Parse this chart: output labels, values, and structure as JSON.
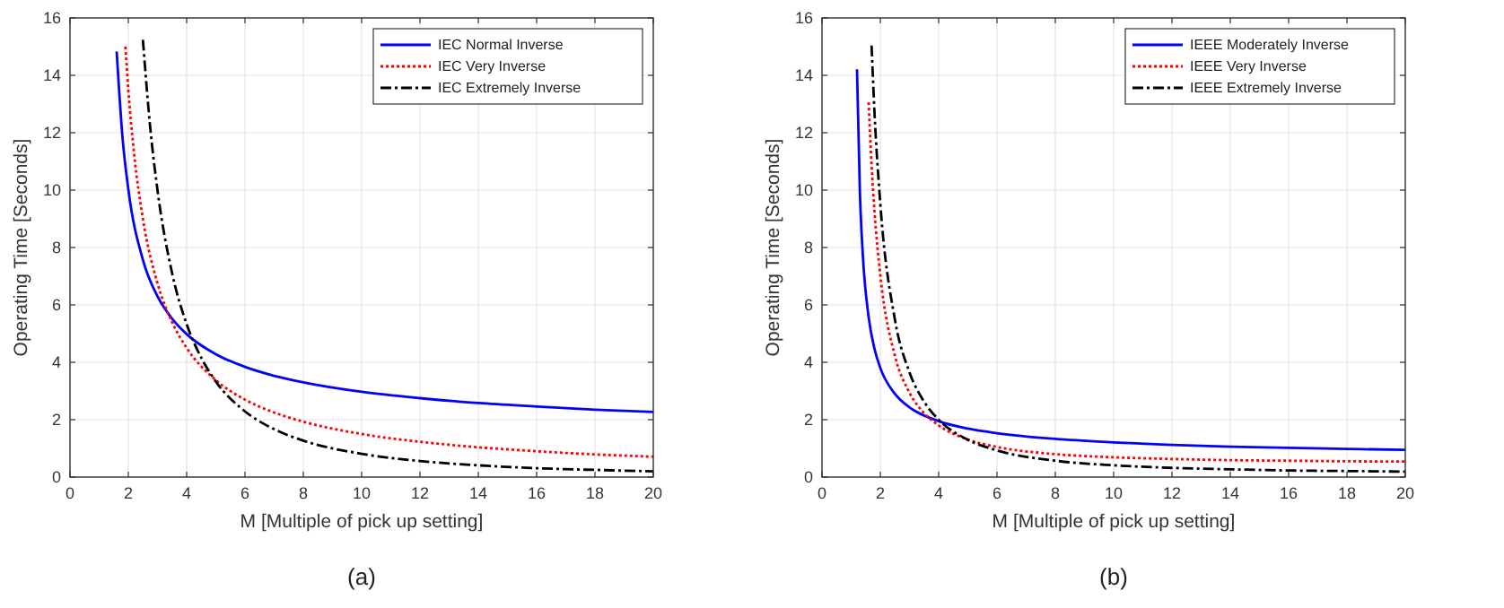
{
  "chart_data": [
    {
      "type": "line",
      "xlabel": "M [Multiple of pick up setting]",
      "ylabel": "Operating Time [Seconds]",
      "annotations": [
        "(a)"
      ],
      "xlim": [
        0,
        20
      ],
      "ylim": [
        0,
        16
      ],
      "xticks": [
        0,
        2,
        4,
        6,
        8,
        10,
        12,
        14,
        16,
        18,
        20
      ],
      "yticks": [
        0,
        2,
        4,
        6,
        8,
        10,
        12,
        14,
        16
      ],
      "grid": true,
      "legend": "top right",
      "series": [
        {
          "name": "IEC Normal Inverse",
          "color": "#0000ff",
          "line_style": "solid",
          "x": [
            1.6,
            1.8,
            2,
            2.5,
            3,
            3.5,
            4,
            5,
            6,
            7,
            8,
            10,
            12,
            14,
            16,
            18,
            20
          ],
          "values": [
            14.83,
            11.84,
            10.03,
            7.57,
            6.3,
            5.52,
            4.98,
            4.28,
            3.84,
            3.53,
            3.3,
            2.97,
            2.75,
            2.58,
            2.46,
            2.35,
            2.27
          ]
        },
        {
          "name": "IEC Very Inverse",
          "color": "#ff0000",
          "line_style": "dotted",
          "x": [
            1.9,
            2,
            2.2,
            2.5,
            3,
            3.5,
            4,
            5,
            6,
            7,
            8,
            10,
            12,
            14,
            16,
            18,
            20
          ],
          "values": [
            15,
            13.5,
            11.25,
            9,
            6.75,
            5.4,
            4.5,
            3.38,
            2.7,
            2.25,
            1.93,
            1.5,
            1.23,
            1.04,
            0.9,
            0.79,
            0.71
          ]
        },
        {
          "name": "IEC Extremely Inverse",
          "color": "#000000",
          "line_style": "dashdot",
          "x": [
            2.5,
            2.75,
            3,
            3.5,
            4,
            4.5,
            5,
            6,
            7,
            8,
            10,
            12,
            14,
            16,
            18,
            20
          ],
          "values": [
            15.24,
            12.19,
            10,
            7.11,
            5.33,
            4.16,
            3.33,
            2.29,
            1.67,
            1.27,
            0.81,
            0.56,
            0.41,
            0.31,
            0.25,
            0.2
          ]
        }
      ]
    },
    {
      "type": "line",
      "xlabel": "M [Multiple of pick up setting]",
      "ylabel": "Operating Time [Seconds]",
      "annotations": [
        "(b)"
      ],
      "xlim": [
        0,
        20
      ],
      "ylim": [
        0,
        16
      ],
      "xticks": [
        0,
        2,
        4,
        6,
        8,
        10,
        12,
        14,
        16,
        18,
        20
      ],
      "yticks": [
        0,
        2,
        4,
        6,
        8,
        10,
        12,
        14,
        16
      ],
      "grid": true,
      "legend": "top right",
      "series": [
        {
          "name": "IEEE Moderately Inverse",
          "color": "#0000ff",
          "line_style": "solid",
          "x": [
            1.2,
            1.3,
            1.4,
            1.6,
            1.8,
            2,
            2.5,
            3,
            4,
            5,
            6,
            8,
            10,
            12,
            14,
            16,
            18,
            20
          ],
          "values": [
            14.21,
            9.9,
            7.74,
            5.57,
            4.47,
            3.8,
            2.9,
            2.43,
            1.95,
            1.69,
            1.53,
            1.33,
            1.21,
            1.12,
            1.06,
            1.02,
            0.98,
            0.95
          ]
        },
        {
          "name": "IEEE Very Inverse",
          "color": "#ff0000",
          "line_style": "dotted",
          "x": [
            1.6,
            1.7,
            1.8,
            2,
            2.5,
            3,
            3.5,
            4,
            5,
            6,
            8,
            10,
            12,
            14,
            16,
            18,
            20
          ],
          "values": [
            13.06,
            10.87,
            9.25,
            7.03,
            4.23,
            2.94,
            2.23,
            1.8,
            1.31,
            1.05,
            0.8,
            0.69,
            0.63,
            0.59,
            0.57,
            0.55,
            0.54
          ]
        },
        {
          "name": "IEEE Extremely Inverse",
          "color": "#000000",
          "line_style": "dashdot",
          "x": [
            1.7,
            1.8,
            2,
            2.5,
            3,
            3.5,
            4,
            5,
            6,
            8,
            10,
            12,
            14,
            16,
            18,
            20
          ],
          "values": [
            15.04,
            12.71,
            9.52,
            5.49,
            3.65,
            2.63,
            2,
            1.3,
            0.93,
            0.57,
            0.41,
            0.32,
            0.27,
            0.23,
            0.21,
            0.19
          ]
        }
      ]
    }
  ]
}
